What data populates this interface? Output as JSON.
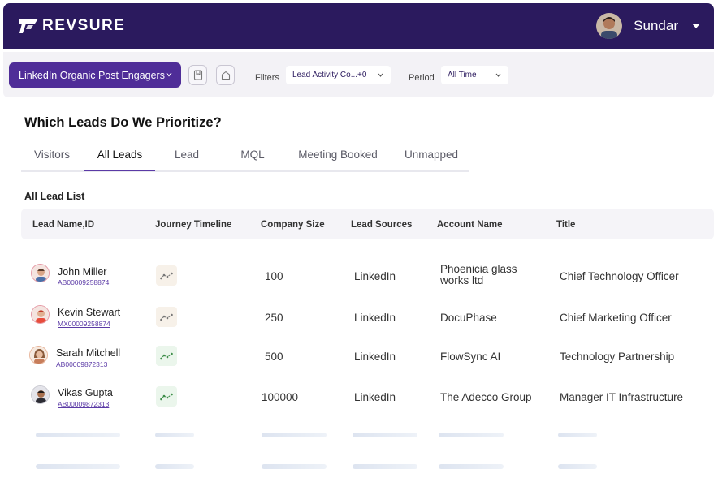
{
  "brand": {
    "name": "REVSURE"
  },
  "user": {
    "name": "Sundar"
  },
  "filterbar": {
    "segment_label": "LinkedIn Organic Post Engagers",
    "filters_label": "Filters",
    "filters_value": "Lead Activity  Co...+0",
    "period_label": "Period",
    "period_value": "All Time"
  },
  "main": {
    "title": "Which Leads Do We Prioritize?",
    "tabs": [
      {
        "label": "Visitors"
      },
      {
        "label": "All Leads"
      },
      {
        "label": "Lead"
      },
      {
        "label": "MQL"
      },
      {
        "label": "Meeting Booked"
      },
      {
        "label": "Unmapped"
      }
    ],
    "active_tab": "All Leads",
    "section_title": "All Lead List"
  },
  "table": {
    "columns": [
      "Lead Name,ID",
      "Journey Timeline",
      "Company Size",
      "Lead Sources",
      "Account Name",
      "Title"
    ],
    "rows": [
      {
        "name": "John Miller",
        "id": "AB00009258874",
        "company_size": "100",
        "source": "LinkedIn",
        "account": "Phoenicia glass works ltd",
        "title": "Chief Technology Officer",
        "journey_color": "#f7f1e9"
      },
      {
        "name": "Kevin Stewart",
        "id": "MX00009258874",
        "company_size": "250",
        "source": "LinkedIn",
        "account": "DocuPhase",
        "title": "Chief  Marketing Officer",
        "journey_color": "#f7f1e9"
      },
      {
        "name": "Sarah Mitchell",
        "id": "AB00009872313",
        "company_size": "500",
        "source": "LinkedIn",
        "account": "FlowSync AI",
        "title": "Technology Partnership",
        "journey_color": "#ebf6ec"
      },
      {
        "name": "Vikas Gupta",
        "id": "AB00009872313",
        "company_size": "100000",
        "source": "LinkedIn",
        "account": "The Adecco Group",
        "title": "Manager IT Infrastructure",
        "journey_color": "#ebf6ec"
      }
    ]
  },
  "colors": {
    "header_bg": "#2b1a5e",
    "accent": "#4f2d98",
    "tab_underline": "#5b3aa6"
  },
  "icons": [
    "revsure-logo-icon",
    "chevron-down-icon",
    "bookmark-icon",
    "home-icon",
    "journey-line-icon",
    "avatar"
  ]
}
